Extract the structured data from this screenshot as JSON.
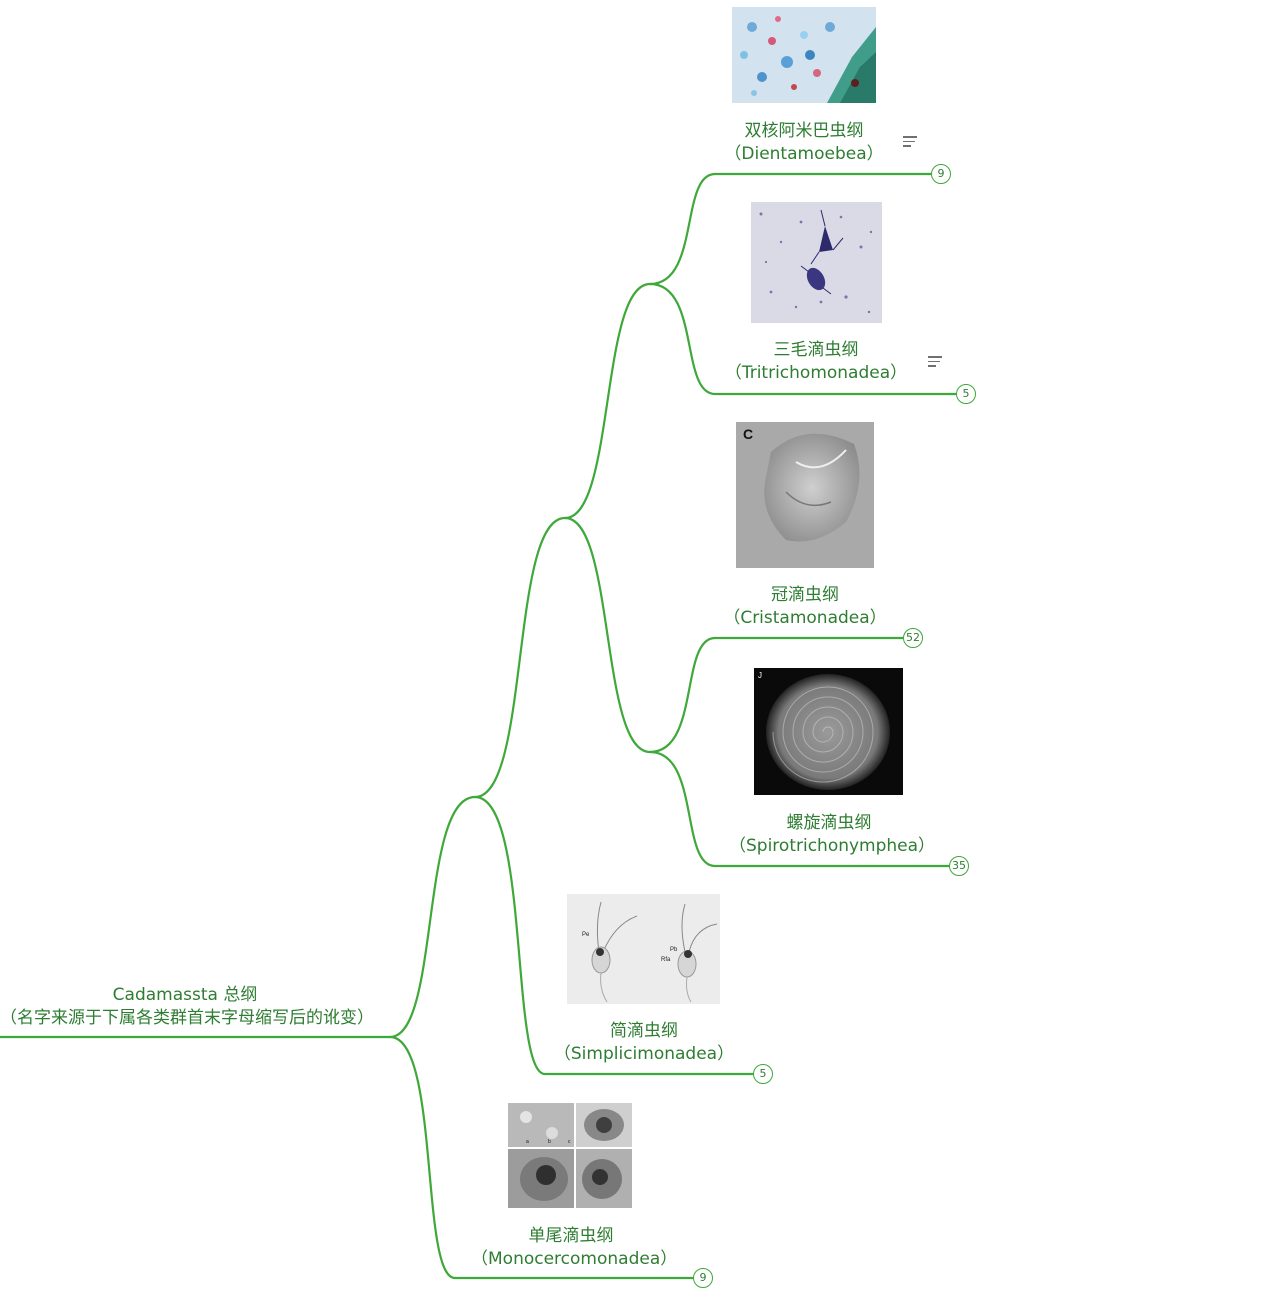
{
  "root": {
    "title": "Cadamassta 总纲",
    "subtitle": "（名字来源于下属各类群首末字母缩写后的讹变）"
  },
  "nodes": [
    {
      "id": "dientamoebea",
      "cn": "双核阿米巴虫纲",
      "en": "（Dientamoebea）",
      "count": "9",
      "has_note": true,
      "image": "blue-stained-cells-photo"
    },
    {
      "id": "tritrichomonadea",
      "cn": "三毛滴虫纲",
      "en": "（Tritrichomonadea）",
      "count": "5",
      "has_note": true,
      "image": "flagellate-stained-photo"
    },
    {
      "id": "cristamonadea",
      "cn": "冠滴虫纲",
      "en": "（Cristamonadea）",
      "count": "52",
      "has_note": false,
      "image": "gray-dic-micrograph",
      "image_letter": "C"
    },
    {
      "id": "spirotrichonymphea",
      "cn": "螺旋滴虫纲",
      "en": "（Spirotrichonymphea）",
      "count": "35",
      "has_note": false,
      "image": "spiral-flagella-micrograph",
      "image_letter": "J"
    },
    {
      "id": "simplicimonadea",
      "cn": "简滴虫纲",
      "en": "（Simplicimonadea）",
      "count": "5",
      "has_note": false,
      "image": "two-cell-drawing",
      "image_labels": [
        "Pe",
        "Pb",
        "Rfa"
      ]
    },
    {
      "id": "monocercomonadea",
      "cn": "单尾滴虫纲",
      "en": "（Monocercomonadea）",
      "count": "9",
      "has_note": false,
      "image": "four-panel-em-micrograph",
      "image_labels": [
        "a",
        "b",
        "c"
      ]
    }
  ],
  "colors": {
    "edge": "#3fa83a",
    "text": "#2e7d32",
    "badge_border": "#3fa83a"
  }
}
